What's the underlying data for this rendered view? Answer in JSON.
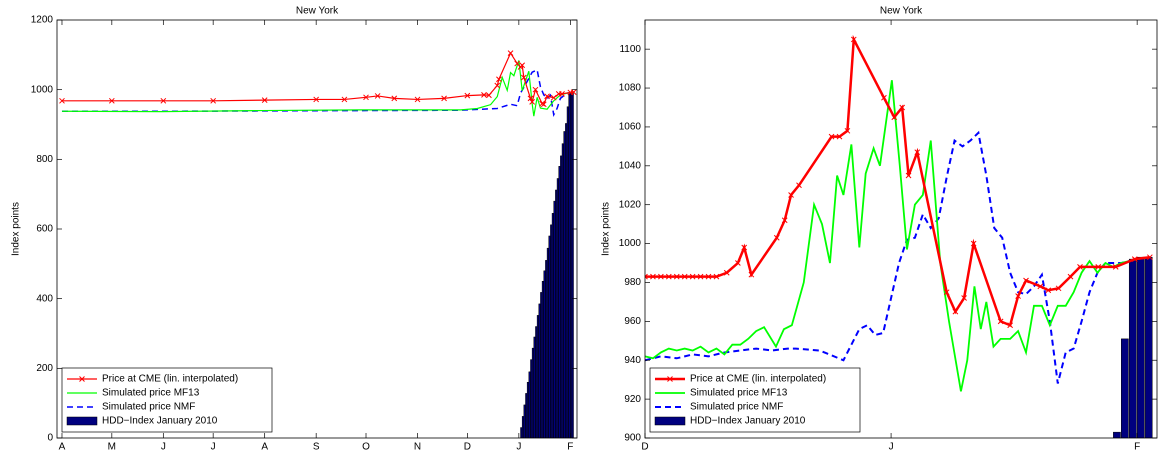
{
  "chart_data": [
    {
      "type": "line",
      "title": "New York",
      "y_label": "Index points",
      "xlim": [
        -3,
        310
      ],
      "ylim": [
        0,
        1200
      ],
      "xticks": [
        {
          "value": 0,
          "label": "A"
        },
        {
          "value": 30,
          "label": "M"
        },
        {
          "value": 61,
          "label": "J"
        },
        {
          "value": 91,
          "label": "J"
        },
        {
          "value": 122,
          "label": "A"
        },
        {
          "value": 153,
          "label": "S"
        },
        {
          "value": 183,
          "label": "O"
        },
        {
          "value": 214,
          "label": "N"
        },
        {
          "value": 244,
          "label": "D"
        },
        {
          "value": 275,
          "label": "J"
        },
        {
          "value": 306,
          "label": "F"
        }
      ],
      "yticks": [
        0,
        200,
        400,
        600,
        800,
        1000,
        1200
      ],
      "legend": "lower left",
      "series": [
        {
          "name": "Price at CME (lin. interpolated)",
          "color": "#ff0000",
          "kind": "line",
          "marker": "x",
          "dash": false,
          "x": [
            0,
            30,
            61,
            91,
            122,
            153,
            170,
            183,
            190,
            200,
            214,
            230,
            244,
            254,
            257,
            262,
            263,
            270,
            274,
            276,
            277,
            278,
            282,
            283,
            285,
            289,
            290,
            292,
            296,
            299,
            301,
            306,
            308
          ],
          "values": [
            968,
            968,
            968,
            968,
            970,
            972,
            972,
            978,
            982,
            975,
            972,
            975,
            983,
            985,
            984,
            1012,
            1030,
            1105,
            1075,
            1065,
            1070,
            1035,
            975,
            965,
            1000,
            960,
            958,
            981,
            977,
            988,
            988,
            992,
            993
          ]
        },
        {
          "name": "Simulated price MF13",
          "color": "#00ff00",
          "kind": "line",
          "marker": null,
          "dash": false,
          "x": [
            0,
            60,
            120,
            180,
            240,
            250,
            258,
            262,
            265,
            268,
            270,
            272,
            275,
            277,
            279,
            281,
            283,
            284,
            286,
            288,
            292,
            296,
            300,
            304,
            308
          ],
          "values": [
            938,
            937,
            940,
            942,
            942,
            946,
            957,
            980,
            1035,
            998,
            1049,
            1040,
            1084,
            997,
            1025,
            1053,
            960,
            924,
            978,
            947,
            944,
            968,
            985,
            990,
            993
          ]
        },
        {
          "name": "Simulated price NMF",
          "color": "#0000ff",
          "kind": "line",
          "marker": null,
          "dash": true,
          "x": [
            0,
            60,
            120,
            180,
            240,
            262,
            270,
            274,
            276,
            279,
            283,
            286,
            288,
            290,
            292,
            294,
            296,
            298,
            300,
            304,
            308
          ],
          "values": [
            938,
            938,
            939,
            940,
            941,
            946,
            958,
            954,
            990,
            1015,
            1050,
            1057,
            1008,
            985,
            974,
            984,
            928,
            946,
            975,
            990,
            993
          ]
        },
        {
          "name": "HDD−Index January 2010",
          "color": "#00007f",
          "kind": "bar",
          "marker": null,
          "dash": false,
          "x": [
            275,
            276,
            277,
            278,
            279,
            280,
            281,
            282,
            283,
            284,
            285,
            286,
            287,
            288,
            289,
            290,
            291,
            292,
            293,
            294,
            295,
            296,
            297,
            298,
            299,
            300,
            301,
            302,
            303,
            304,
            305,
            306,
            307
          ],
          "values": [
            0,
            30,
            62,
            95,
            128,
            160,
            190,
            225,
            258,
            290,
            320,
            352,
            385,
            418,
            450,
            480,
            510,
            545,
            580,
            612,
            645,
            680,
            712,
            745,
            780,
            810,
            845,
            880,
            903,
            951,
            992,
            993,
            993
          ]
        }
      ]
    },
    {
      "type": "line",
      "title": "New York",
      "y_label": "Index points",
      "xlim": [
        0,
        64.5
      ],
      "ylim": [
        900,
        1115
      ],
      "xticks": [
        {
          "value": 0,
          "label": "D"
        },
        {
          "value": 31,
          "label": "J"
        },
        {
          "value": 62,
          "label": "F"
        }
      ],
      "yticks": [
        900,
        920,
        940,
        960,
        980,
        1000,
        1020,
        1040,
        1060,
        1080,
        1100
      ],
      "legend": "lower left",
      "series": [
        {
          "name": "Price at CME (lin. interpolated)",
          "color": "#ff0000",
          "kind": "line",
          "marker": "x",
          "dash": false,
          "x": [
            0,
            1,
            2,
            3,
            4,
            5,
            6,
            7,
            8,
            9,
            10.3,
            11.7,
            12.5,
            13.4,
            16.6,
            17.6,
            18.4,
            19.4,
            23.5,
            24.5,
            25.5,
            26.3,
            30.1,
            31.4,
            32.4,
            33.2,
            34.3,
            38,
            39.1,
            40.2,
            41.4,
            44.8,
            46,
            47,
            48,
            49.8,
            50.8,
            52.1,
            53.6,
            54.8,
            57.1,
            59.3,
            61.7,
            63.6
          ],
          "values": [
            983,
            983,
            983,
            983,
            983,
            983,
            983,
            983,
            983,
            983,
            985,
            990,
            998,
            984,
            1003,
            1012,
            1025,
            1030,
            1055,
            1055,
            1058,
            1105,
            1075,
            1065,
            1070,
            1035,
            1047,
            975,
            965,
            972,
            1000,
            960,
            958,
            973,
            981,
            978,
            976,
            977,
            983,
            988,
            988,
            988,
            992,
            993
          ]
        },
        {
          "name": "Simulated price MF13",
          "color": "#00ff00",
          "kind": "line",
          "marker": null,
          "dash": false,
          "x": [
            0,
            1,
            2,
            3,
            4,
            5,
            6,
            7,
            8,
            9,
            10,
            11,
            12,
            13,
            14,
            15,
            16.5,
            17.5,
            18.5,
            20,
            21.3,
            22.3,
            23.3,
            24.2,
            25,
            26,
            27,
            27.8,
            28.8,
            29.6,
            31.1,
            32.1,
            33,
            34,
            35,
            36,
            37.2,
            38.3,
            39.8,
            40.6,
            41.5,
            42.3,
            43,
            43.9,
            44.8,
            46,
            47,
            48,
            49,
            50,
            51,
            52,
            53,
            54,
            55,
            56,
            57,
            58,
            59,
            60,
            62,
            63.5
          ],
          "values": [
            942,
            941,
            944,
            946,
            945,
            946,
            945,
            947,
            944,
            946,
            943,
            948,
            948,
            951,
            955,
            957,
            947,
            956,
            958,
            980,
            1020,
            1010,
            990,
            1035,
            1025,
            1051,
            998,
            1036,
            1049,
            1040,
            1084,
            1040,
            997,
            1020,
            1025,
            1053,
            990,
            960,
            924,
            940,
            978,
            956,
            970,
            947,
            951,
            951,
            955,
            944,
            968,
            968,
            958,
            968,
            968,
            975,
            985,
            991,
            985,
            990,
            988,
            990,
            992,
            993
          ]
        },
        {
          "name": "Simulated price NMF",
          "color": "#0000ff",
          "kind": "line",
          "marker": null,
          "dash": true,
          "x": [
            0,
            2,
            4,
            6,
            8,
            10,
            12,
            14,
            16,
            18,
            19,
            22,
            25,
            26,
            27,
            28,
            29,
            30,
            32,
            33,
            34,
            35,
            36,
            37,
            38,
            39,
            40,
            41,
            42,
            43,
            44,
            45,
            46,
            47,
            48,
            49,
            50,
            51,
            52,
            53,
            54,
            55,
            56,
            57,
            58,
            60,
            62,
            63.5
          ],
          "values": [
            940,
            942,
            941,
            943,
            942,
            944,
            945,
            946,
            945,
            946,
            946,
            945,
            940,
            948,
            956,
            958,
            953,
            954,
            990,
            1002,
            1003,
            1015,
            1008,
            1013,
            1034,
            1053,
            1050,
            1053,
            1057,
            1035,
            1008,
            1003,
            985,
            975,
            974,
            978,
            984,
            960,
            928,
            944,
            946,
            960,
            975,
            985,
            990,
            990,
            992,
            993
          ]
        },
        {
          "name": "HDD−Index January 2010",
          "color": "#00007f",
          "kind": "bar",
          "marker": null,
          "dash": false,
          "x": [
            59,
            60,
            61,
            62,
            63
          ],
          "values": [
            903,
            951,
            992,
            993,
            993
          ]
        }
      ]
    }
  ]
}
